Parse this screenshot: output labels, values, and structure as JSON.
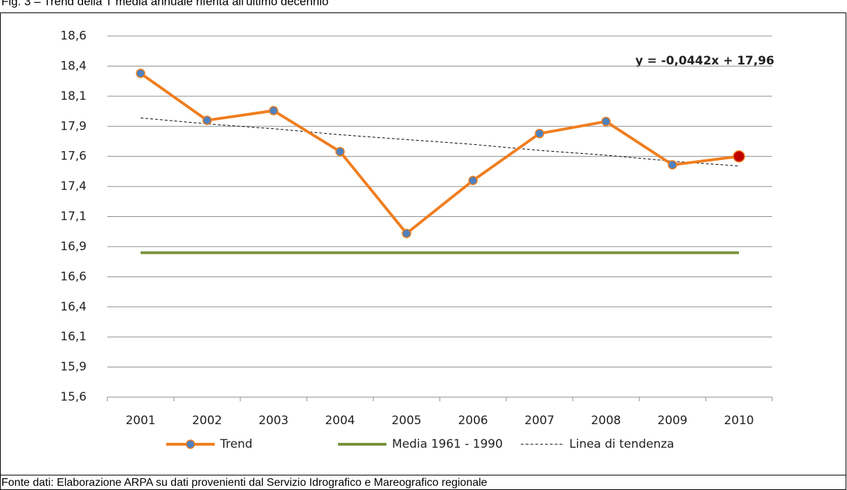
{
  "chart_data": {
    "type": "line",
    "title": "Fig. 3 – Trend della T media annuale riferita all'ultimo decennio",
    "source": "Fonte dati: Elaborazione ARPA su dati provenienti dal Servizio Idrografico e Mareografico regionale",
    "annotation": "y = -0,0442x + 17,96",
    "categories": [
      "2001",
      "2002",
      "2003",
      "2004",
      "2005",
      "2006",
      "2007",
      "2008",
      "2009",
      "2010"
    ],
    "series": [
      {
        "name": "Trend",
        "color": "#f07d1e",
        "marker_color": "#4f81bd",
        "highlight": {
          "index": 9,
          "color": "#c00000"
        },
        "values": [
          18.29,
          17.9,
          17.98,
          17.64,
          16.96,
          17.4,
          17.79,
          17.89,
          17.53,
          17.6
        ]
      },
      {
        "name": "Media 1961 - 1990",
        "color": "#77933c",
        "values": [
          16.8,
          16.8,
          16.8,
          16.8,
          16.8,
          16.8,
          16.8,
          16.8,
          16.8,
          16.8
        ]
      },
      {
        "name": "Linea di tendenza",
        "color": "#000000",
        "dashed": true,
        "values": [
          17.92,
          17.87,
          17.83,
          17.78,
          17.74,
          17.7,
          17.65,
          17.61,
          17.56,
          17.52
        ]
      }
    ],
    "ylim": [
      15.6,
      18.6
    ],
    "yticks": [
      {
        "value": 15.6,
        "label": "15,6"
      },
      {
        "value": 15.85,
        "label": "15,9"
      },
      {
        "value": 16.1,
        "label": "16,1"
      },
      {
        "value": 16.35,
        "label": "16,4"
      },
      {
        "value": 16.6,
        "label": "16,6"
      },
      {
        "value": 16.85,
        "label": "16,9"
      },
      {
        "value": 17.1,
        "label": "17,1"
      },
      {
        "value": 17.35,
        "label": "17,4"
      },
      {
        "value": 17.6,
        "label": "17,6"
      },
      {
        "value": 17.85,
        "label": "17,9"
      },
      {
        "value": 18.1,
        "label": "18,1"
      },
      {
        "value": 18.35,
        "label": "18,4"
      },
      {
        "value": 18.6,
        "label": "18,6"
      }
    ],
    "grid": true,
    "legend": "bottom"
  }
}
